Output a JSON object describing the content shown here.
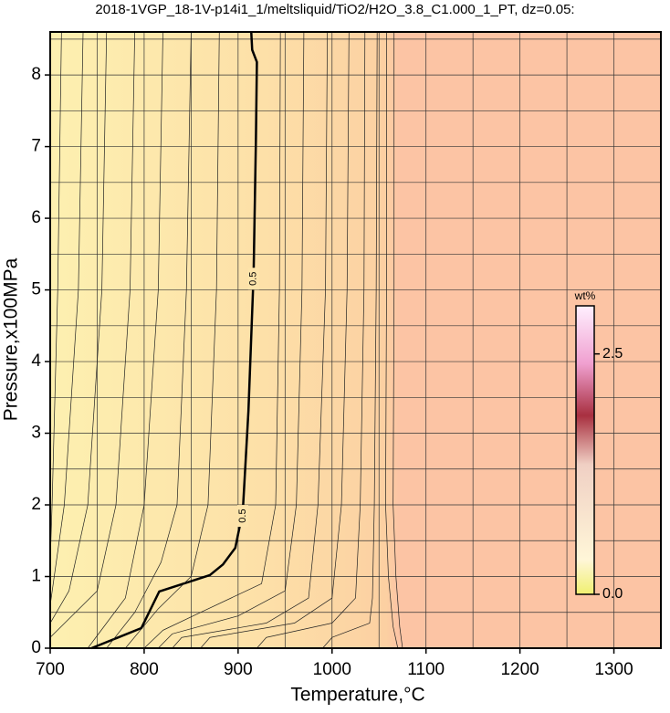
{
  "chart_data": {
    "type": "contour",
    "title": "2018-1VGP_18-1V-p14i1_1/meltsliquid/TiO2/H2O_3.8_C1.000_1_PT, dz=0.05:",
    "x_label": "Temperature,°C",
    "y_label": "Pressure,x100MPa",
    "xlim": [
      700,
      1350
    ],
    "ylim": [
      0,
      8.6
    ],
    "xticks": [
      700,
      800,
      900,
      1000,
      1100,
      1200,
      1300
    ],
    "yticks": [
      0,
      1,
      2,
      3,
      4,
      5,
      6,
      7,
      8
    ],
    "xgrid": [
      750,
      800,
      850,
      900,
      950,
      1000,
      1050,
      1100,
      1150,
      1200,
      1250,
      1300
    ],
    "ygrid": [
      0.5,
      1,
      1.5,
      2,
      2.5,
      3,
      3.5,
      4,
      4.5,
      5,
      5.5,
      6,
      6.5,
      7,
      7.5,
      8,
      8.5
    ],
    "contours": [
      {
        "level": 0.5,
        "color": "#000000",
        "x": [
          914,
          915,
          920,
          919,
          916.5,
          911,
          905,
          897,
          884,
          870,
          816,
          797,
          744
        ],
        "y": [
          8.6,
          8.35,
          8.18,
          7.13,
          5.22,
          3.31,
          1.91,
          1.4,
          1.17,
          1.02,
          0.79,
          0.28,
          0
        ]
      },
      {
        "x": [
          712,
          708,
          702,
          700
        ],
        "y": [
          8.6,
          5,
          2,
          1.2
        ]
      },
      {
        "x": [
          735,
          730,
          715,
          700
        ],
        "y": [
          8.6,
          5,
          2,
          0.6
        ]
      },
      {
        "x": [
          760,
          755,
          740,
          720,
          700
        ],
        "y": [
          8.6,
          5,
          2,
          0.8,
          0.35
        ]
      },
      {
        "x": [
          790,
          785,
          770,
          750,
          700
        ],
        "y": [
          8.6,
          5,
          2,
          0.8,
          0.15
        ]
      },
      {
        "x": [
          820,
          815,
          800,
          780,
          740
        ],
        "y": [
          8.6,
          5,
          2,
          0.7,
          0
        ]
      },
      {
        "x": [
          850,
          845,
          835,
          818,
          790,
          760
        ],
        "y": [
          8.6,
          5,
          2,
          1.2,
          0.5,
          0
        ]
      },
      {
        "x": [
          880,
          877,
          868,
          850,
          815,
          780
        ],
        "y": [
          8.6,
          5,
          2,
          1.0,
          0.55,
          0
        ]
      },
      {
        "x": [
          945,
          944,
          940,
          925,
          860,
          820,
          800
        ],
        "y": [
          8.6,
          5,
          2,
          0.9,
          0.5,
          0.25,
          0
        ]
      },
      {
        "x": [
          970,
          968,
          962,
          950,
          900,
          830,
          815
        ],
        "y": [
          8.6,
          5,
          2,
          0.8,
          0.45,
          0.2,
          0
        ]
      },
      {
        "x": [
          995,
          993,
          985,
          975,
          930,
          840,
          830
        ],
        "y": [
          8.6,
          5,
          2,
          0.7,
          0.35,
          0.15,
          0
        ]
      },
      {
        "x": [
          1018,
          1016,
          1010,
          1000,
          960,
          870,
          860
        ],
        "y": [
          8.6,
          5,
          2,
          0.7,
          0.35,
          0.15,
          0
        ]
      },
      {
        "x": [
          1035,
          1034,
          1030,
          1025,
          1000,
          930,
          920
        ],
        "y": [
          8.6,
          5,
          2,
          0.7,
          0.35,
          0.15,
          0
        ]
      },
      {
        "x": [
          1048,
          1047,
          1045,
          1043,
          1040,
          1000,
          990
        ],
        "y": [
          8.6,
          5,
          2,
          0.7,
          0.35,
          0.15,
          0
        ]
      },
      {
        "x": [
          1058,
          1058,
          1057,
          1060,
          1065,
          1070
        ],
        "y": [
          8.6,
          5,
          2,
          1,
          0.3,
          0
        ]
      },
      {
        "x": [
          1066,
          1066,
          1065,
          1068,
          1072,
          1075
        ],
        "y": [
          8.6,
          5,
          2,
          1,
          0.3,
          0
        ]
      }
    ],
    "colorbar": {
      "unit": "wt%",
      "clim": [
        0,
        3
      ],
      "ticks": [
        {
          "value": 0,
          "label": "0.0"
        },
        {
          "value": 2.5,
          "label": "2.5"
        }
      ]
    }
  }
}
